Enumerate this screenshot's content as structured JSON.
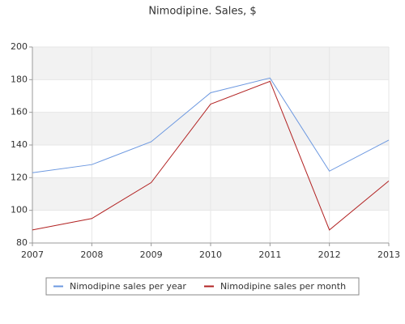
{
  "chart_data": {
    "type": "line",
    "title": "Nimodipine. Sales, $",
    "x": [
      2007,
      2008,
      2009,
      2010,
      2011,
      2012,
      2013
    ],
    "series": [
      {
        "name": "Nimodipine sales per year",
        "color": "#6c98e0",
        "values": [
          123,
          128,
          142,
          172,
          181,
          124,
          143
        ]
      },
      {
        "name": "Nimodipine sales per month",
        "color": "#b22222",
        "values": [
          88,
          95,
          117,
          165,
          179,
          88,
          118
        ]
      }
    ],
    "xlim": [
      2007,
      2013
    ],
    "xticks": [
      2007,
      2008,
      2009,
      2010,
      2011,
      2012,
      2013
    ],
    "ylim": [
      80,
      200
    ],
    "yticks": [
      80,
      100,
      120,
      140,
      160,
      180,
      200
    ],
    "grid": true,
    "bands": true,
    "legend": "bottom"
  }
}
